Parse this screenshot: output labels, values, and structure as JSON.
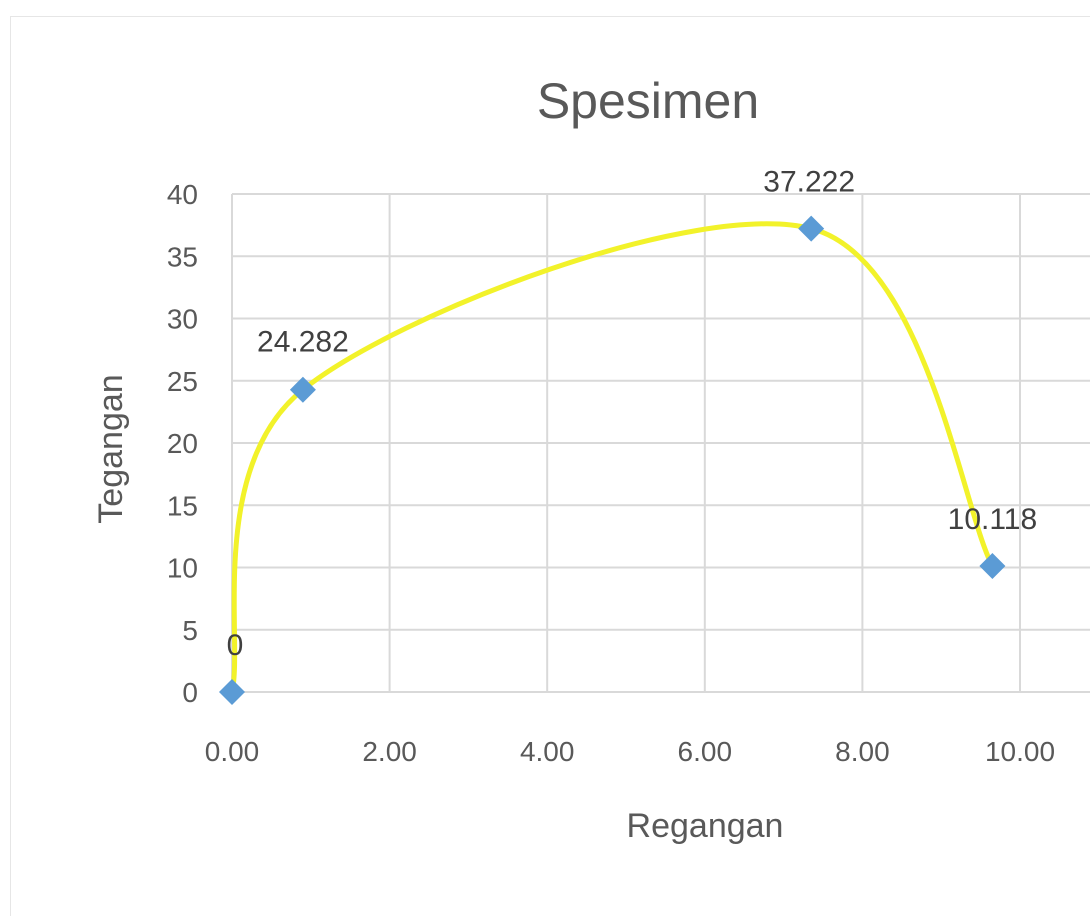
{
  "chart_data": {
    "type": "scatter",
    "title": "Spesimen",
    "xlabel": "Regangan",
    "ylabel": "Tegangan",
    "xlim": [
      0,
      10
    ],
    "ylim": [
      0,
      40
    ],
    "x_ticks": [
      "0.00",
      "2.00",
      "4.00",
      "6.00",
      "8.00",
      "10.00"
    ],
    "y_ticks": [
      "0",
      "5",
      "10",
      "15",
      "20",
      "25",
      "30",
      "35",
      "40"
    ],
    "grid": true,
    "smoothed_line": true,
    "line_color": "#f2f22a",
    "marker_color": "#5b9bd5",
    "series": [
      {
        "points": [
          {
            "x": 0.0,
            "y": 0,
            "label": "0"
          },
          {
            "x": 0.9,
            "y": 24.282,
            "label": "24.282"
          },
          {
            "x": 7.35,
            "y": 37.222,
            "label": "37.222"
          },
          {
            "x": 9.65,
            "y": 10.118,
            "label": "10.118"
          }
        ]
      }
    ]
  }
}
